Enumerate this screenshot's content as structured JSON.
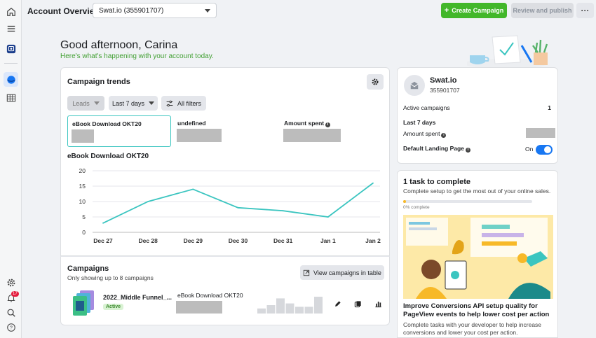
{
  "header": {
    "title": "Account Overview",
    "account_selector": "Swat.io (355901707)",
    "create_label": "Create Campaign",
    "review_label": "Review and publish",
    "more_label": "···"
  },
  "greeting": {
    "title": "Good afternoon, Carina",
    "subtitle": "Here's what's happening with your account today."
  },
  "rail": {
    "notification_count": "17",
    "icons": [
      "home-icon",
      "menu-icon",
      "account-icon",
      "campaigns-icon",
      "table-icon",
      "settings-icon",
      "notifications-icon",
      "search-icon",
      "help-icon"
    ]
  },
  "trends": {
    "title": "Campaign trends",
    "filters": {
      "metric": "Leads",
      "range": "Last 7 days",
      "all": "All filters"
    },
    "metrics": [
      {
        "label": "eBook Download OKT20"
      },
      {
        "label": "undefined"
      },
      {
        "label": "Amount spent"
      }
    ],
    "chart_title": "eBook Download OKT20"
  },
  "chart_data": {
    "type": "line",
    "title": "eBook Download OKT20",
    "xlabel": "",
    "ylabel": "",
    "categories": [
      "Dec 27",
      "Dec 28",
      "Dec 29",
      "Dec 30",
      "Dec 31",
      "Jan 1",
      "Jan 2"
    ],
    "series": [
      {
        "values": [
          3,
          10,
          14,
          8,
          7,
          5,
          16
        ]
      }
    ],
    "yticks": [
      0,
      5,
      10,
      15,
      20
    ],
    "ylim": [
      0,
      20
    ],
    "grid": true,
    "line_color": "#3bc5c0"
  },
  "campaigns": {
    "title": "Campaigns",
    "subtitle": "Only showing up to 8 campaigns",
    "view_label": "View campaigns in table",
    "rows": [
      {
        "name": "2022_Middle Funnel_...",
        "status": "Active",
        "ad": "eBook Download OKT20",
        "spark": [
          3,
          5,
          9,
          6,
          4,
          4,
          10
        ]
      }
    ]
  },
  "account": {
    "name": "Swat.io",
    "id": "355901707",
    "active_label": "Active campaigns",
    "active_value": "1",
    "period_label": "Last 7 days",
    "spent_label": "Amount spent",
    "landing_label": "Default Landing Page",
    "landing_value": "On"
  },
  "task": {
    "title": "1 task to complete",
    "subtitle": "Complete setup to get the most out of your online sales.",
    "progress": 0.02,
    "progress_label": "0% complete",
    "heading": "Improve Conversions API setup quality for PageView events to help lower cost per action",
    "body": "Complete tasks with your developer to help increase conversions and lower your cost per action."
  },
  "colors": {
    "accent": "#42b72a",
    "primary": "#1877f2",
    "chart": "#3bc5c0"
  }
}
